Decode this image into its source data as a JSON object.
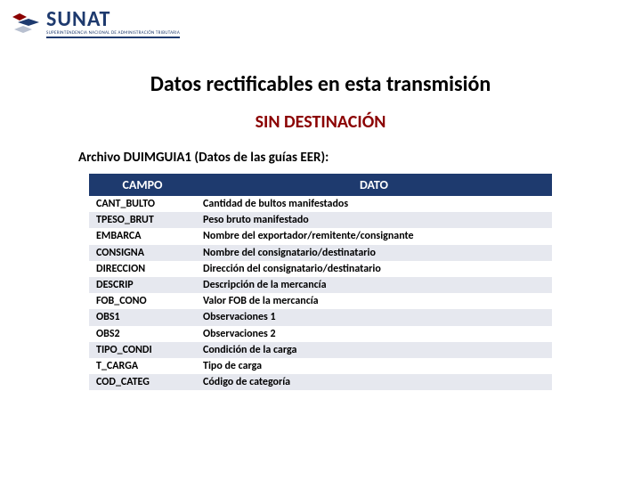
{
  "logo": {
    "brand": "SUNAT",
    "subtitle": "SUPERINTENDENCIA NACIONAL DE ADMINISTRACIÓN TRIBUTARIA",
    "primary_color": "#1e3a6e",
    "accent_color": "#8b0000"
  },
  "main_title": "Datos rectificables en esta transmisión",
  "sub_title": "SIN DESTINACIÓN",
  "file_label": "Archivo DUIMGUIA1 (Datos de las guías EER):",
  "table": {
    "header_bg": "#1e3a6e",
    "header_fg": "#ffffff",
    "row_alt_bg": "#e6e8ef",
    "columns": [
      "CAMPO",
      "DATO"
    ],
    "rows": [
      [
        "CANT_BULTO",
        "Cantidad de bultos manifestados"
      ],
      [
        "TPESO_BRUT",
        "Peso bruto manifestado"
      ],
      [
        "EMBARCA",
        "Nombre del exportador/remitente/consignante"
      ],
      [
        "CONSIGNA",
        "Nombre del consignatario/destinatario"
      ],
      [
        "DIRECCION",
        "Dirección del consignatario/destinatario"
      ],
      [
        "DESCRIP",
        "Descripción de la mercancía"
      ],
      [
        "FOB_CONO",
        "Valor FOB de la mercancía"
      ],
      [
        "OBS1",
        "Observaciones 1"
      ],
      [
        "OBS2",
        "Observaciones 2"
      ],
      [
        "TIPO_CONDI",
        "Condición de la carga"
      ],
      [
        "T_CARGA",
        "Tipo de carga"
      ],
      [
        "COD_CATEG",
        "Código de categoría"
      ]
    ]
  }
}
